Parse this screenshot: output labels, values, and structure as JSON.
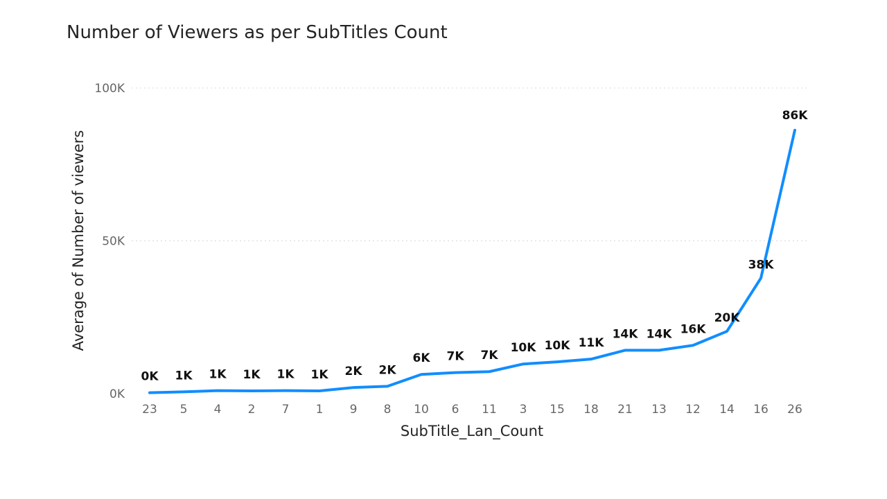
{
  "chart_data": {
    "type": "line",
    "title": "Number of Viewers as per SubTitles Count",
    "xlabel": "SubTitle_Lan_Count",
    "ylabel": "Average of Number of viewers",
    "categories": [
      "23",
      "5",
      "4",
      "2",
      "7",
      "1",
      "9",
      "8",
      "10",
      "6",
      "11",
      "3",
      "15",
      "18",
      "21",
      "13",
      "12",
      "14",
      "16",
      "26"
    ],
    "series": [
      {
        "values": [
          300,
          600,
          1000,
          900,
          1000,
          900,
          2000,
          2400,
          6300,
          6900,
          7200,
          9700,
          10400,
          11300,
          14200,
          14200,
          15800,
          20400,
          37800,
          86200
        ],
        "data_labels": [
          "0K",
          "1K",
          "1K",
          "1K",
          "1K",
          "1K",
          "2K",
          "2K",
          "6K",
          "7K",
          "7K",
          "10K",
          "10K",
          "11K",
          "14K",
          "14K",
          "16K",
          "20K",
          "38K",
          "86K"
        ]
      }
    ],
    "ylim": [
      0,
      100000
    ],
    "yticks": [
      0,
      50000,
      100000
    ],
    "ytick_labels": [
      "0K",
      "50K",
      "100K"
    ],
    "grid": true,
    "line_color": "#118DFF"
  }
}
